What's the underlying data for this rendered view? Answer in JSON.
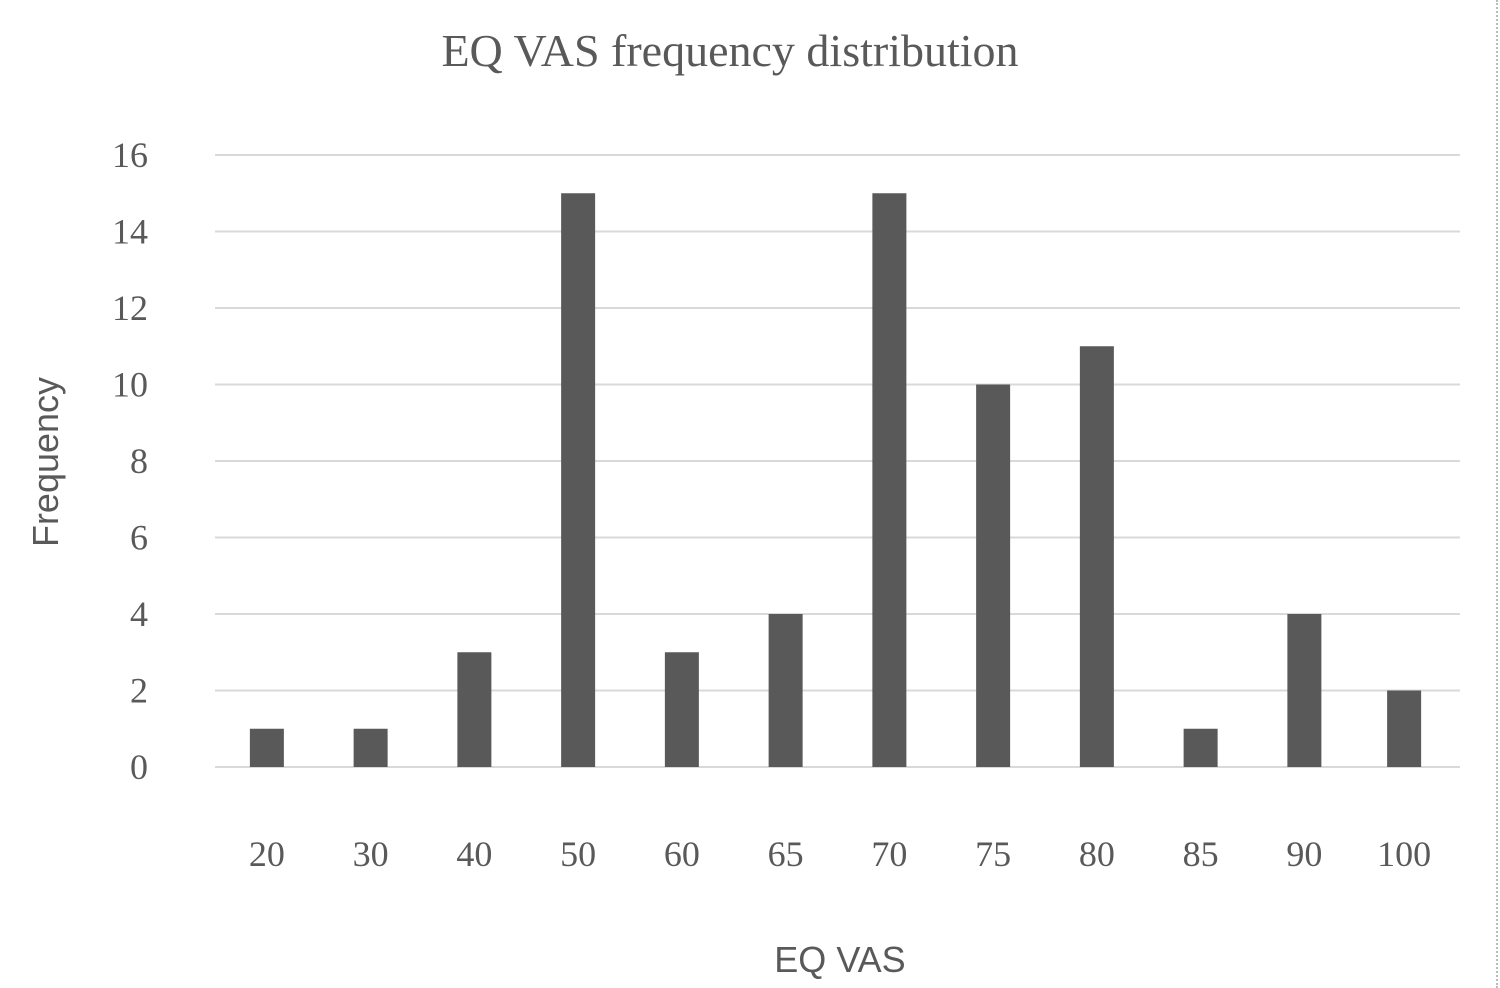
{
  "chart_data": {
    "type": "bar",
    "title": "EQ VAS frequency distribution",
    "xlabel": "EQ VAS",
    "ylabel": "Frequency",
    "categories": [
      "20",
      "30",
      "40",
      "50",
      "60",
      "65",
      "70",
      "75",
      "80",
      "85",
      "90",
      "100"
    ],
    "values": [
      1,
      1,
      3,
      15,
      3,
      4,
      15,
      10,
      11,
      1,
      4,
      2
    ],
    "ylim": [
      0,
      16
    ],
    "yticks": [
      "0",
      "2",
      "4",
      "6",
      "8",
      "10",
      "12",
      "14",
      "16"
    ],
    "grid": true,
    "legend": "none",
    "colors": {
      "bar": "#595959",
      "grid": "#d9d9d9",
      "text": "#595959"
    }
  }
}
